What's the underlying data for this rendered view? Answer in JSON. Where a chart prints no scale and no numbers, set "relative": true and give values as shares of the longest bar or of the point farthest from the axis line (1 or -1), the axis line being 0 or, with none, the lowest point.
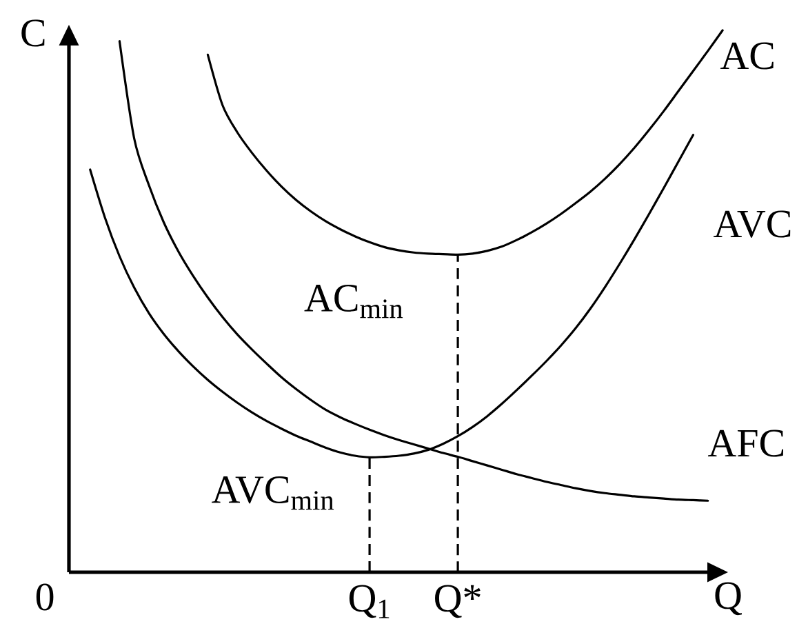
{
  "chart_data": {
    "type": "line",
    "relative": true,
    "xlabel": "Q",
    "ylabel": "C",
    "categories": [
      null,
      null,
      null,
      null,
      null,
      null,
      null,
      null,
      null,
      null,
      null,
      null,
      null,
      null,
      null,
      null,
      null,
      null,
      null,
      null,
      "Q$_{1}$",
      null,
      null,
      null,
      null,
      null,
      "Q*",
      null,
      null,
      null,
      null,
      null,
      null,
      null,
      null,
      null,
      null,
      null,
      null,
      null,
      null,
      null,
      null,
      null,
      null
    ],
    "series": [
      {
        "name": "AC",
        "color": "#000000",
        "values": [
          null,
          null,
          null,
          null,
          null,
          null,
          null,
          null,
          null,
          0.955,
          0.862,
          0.812,
          0.774,
          0.741,
          0.712,
          0.687,
          0.666,
          0.648,
          0.633,
          0.62,
          0.609,
          0.6,
          0.594,
          0.59,
          0.588,
          0.587,
          0.586,
          0.588,
          0.593,
          0.601,
          0.613,
          0.627,
          0.643,
          0.661,
          0.681,
          0.702,
          0.726,
          0.753,
          0.783,
          0.816,
          0.851,
          0.888,
          0.925,
          0.962,
          1
        ]
      },
      {
        "name": "AVC",
        "color": "#000000",
        "values": [
          null,
          0.743,
          0.655,
          0.583,
          0.525,
          0.478,
          0.44,
          0.408,
          0.38,
          0.355,
          0.333,
          0.313,
          0.295,
          0.279,
          0.265,
          0.252,
          0.241,
          0.23,
          0.221,
          0.215,
          0.212,
          0.213,
          0.215,
          0.219,
          0.226,
          0.237,
          0.251,
          0.268,
          0.288,
          0.311,
          0.336,
          0.362,
          0.389,
          0.418,
          0.45,
          0.486,
          0.526,
          0.569,
          0.614,
          0.661,
          0.709,
          0.758,
          0.807,
          null,
          null
        ]
      },
      {
        "name": "AFC",
        "color": "#000000",
        "values": [
          null,
          null,
          null,
          0.98,
          0.8,
          0.714,
          0.646,
          0.592,
          0.547,
          0.507,
          0.471,
          0.439,
          0.411,
          0.385,
          0.36,
          0.338,
          0.318,
          0.3,
          0.286,
          0.274,
          0.263,
          0.253,
          0.244,
          0.236,
          0.228,
          0.22,
          0.213,
          0.205,
          0.197,
          0.189,
          0.181,
          0.174,
          0.167,
          0.161,
          0.155,
          0.15,
          0.146,
          0.143,
          0.14,
          0.138,
          0.136,
          0.134,
          0.133,
          0.132,
          null
        ]
      },
      {
        "type": "line",
        "line_style": "dashed",
        "color": "#000000",
        "x": [
          "Q$_{1}$",
          "Q$_{1}$"
        ],
        "values": [
          0,
          0.212
        ]
      },
      {
        "type": "line",
        "line_style": "dashed",
        "color": "#000000",
        "x": [
          "Q*",
          "Q*"
        ],
        "values": [
          0,
          0.586
        ]
      }
    ],
    "annotations": [
      {
        "text": "AC$_{min}$",
        "x": "Q*",
        "y": 0.586
      },
      {
        "text": "AVC$_{min}$",
        "x": "Q$_{1}$",
        "y": 0.212
      },
      "0"
    ]
  }
}
